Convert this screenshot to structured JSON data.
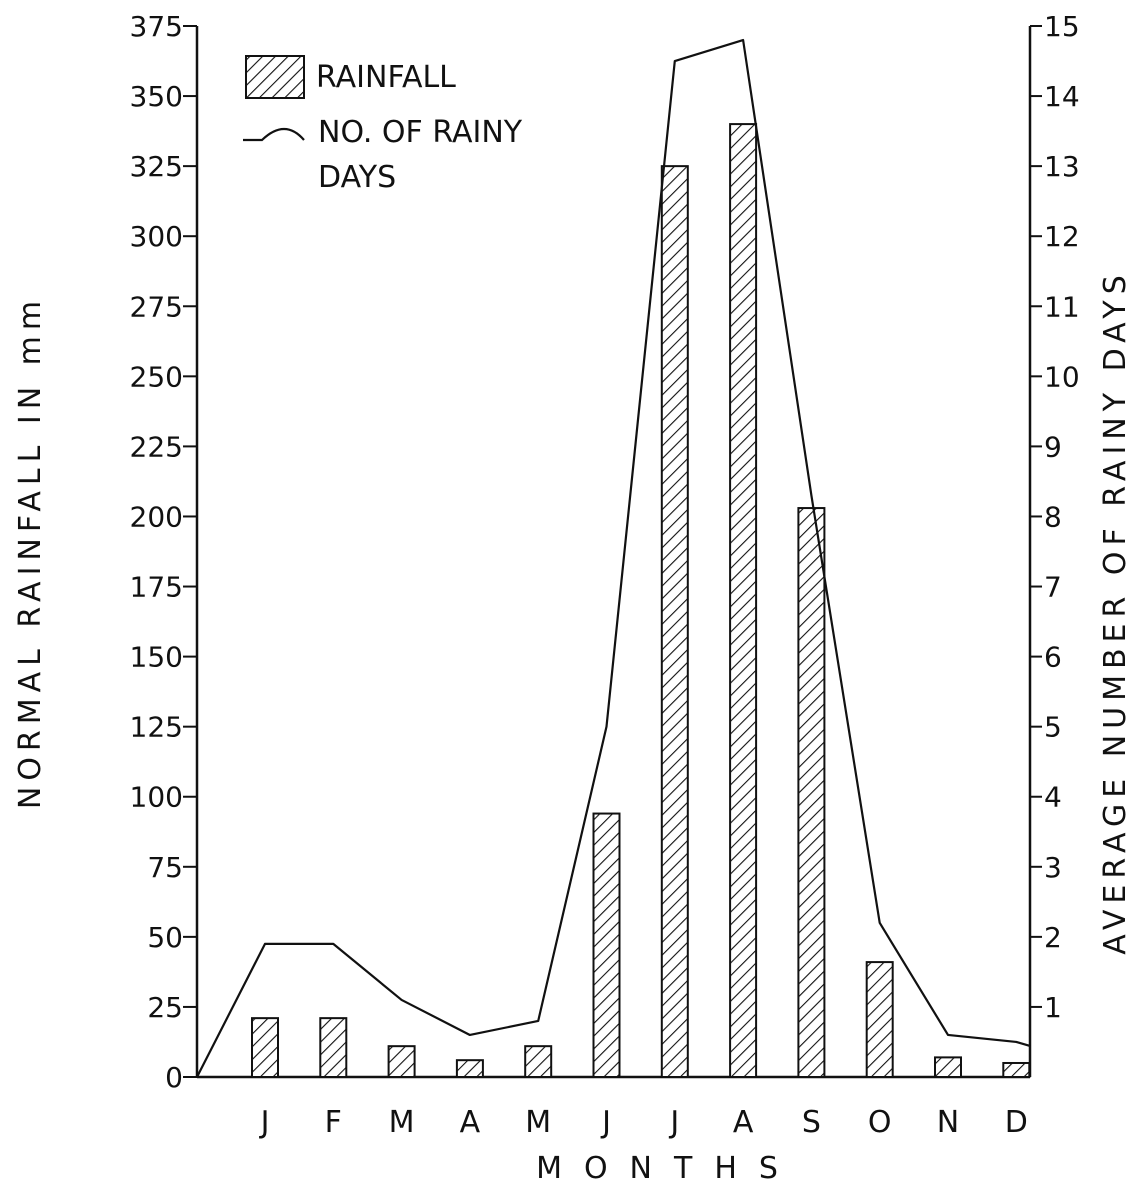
{
  "chart_data": {
    "type": "bar",
    "categories": [
      "J",
      "F",
      "M",
      "A",
      "M",
      "J",
      "J",
      "A",
      "S",
      "O",
      "N",
      "D"
    ],
    "series": [
      {
        "name": "RAINFALL",
        "type": "bar",
        "axis": "left",
        "values": [
          21,
          21,
          11,
          6,
          11,
          94,
          325,
          340,
          203,
          41,
          7,
          5
        ]
      },
      {
        "name": "NO. OF RAINY DAYS",
        "type": "line",
        "axis": "right",
        "values": [
          1.9,
          1.9,
          1.1,
          0.6,
          0.8,
          5.0,
          14.5,
          14.8,
          8.3,
          2.2,
          0.6,
          0.5
        ]
      }
    ],
    "xlabel": "MONTHS",
    "ylabel": "NORMAL RAINFALL IN mm",
    "ylabel_right": "AVERAGE NUMBER OF RAINY DAYS",
    "ylim": [
      0,
      375
    ],
    "ylim_right": [
      0,
      15
    ],
    "yticks": [
      0,
      25,
      50,
      75,
      100,
      125,
      150,
      175,
      200,
      225,
      250,
      275,
      300,
      325,
      350,
      375
    ],
    "yticks_right": [
      1,
      2,
      3,
      4,
      5,
      6,
      7,
      8,
      9,
      10,
      11,
      12,
      13,
      14,
      15
    ],
    "legend_position": "top-left",
    "legend": [
      {
        "label": "RAINFALL",
        "style": "hatched-bar"
      },
      {
        "label": "NO. OF RAINY DAYS",
        "style": "line"
      }
    ],
    "grid": false
  }
}
